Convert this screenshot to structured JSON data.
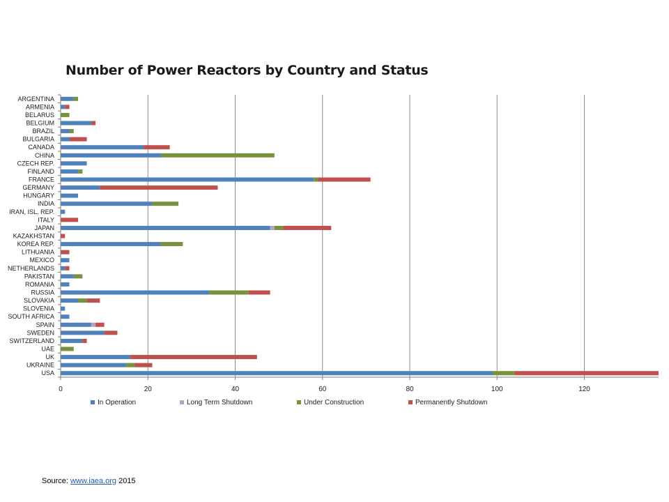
{
  "chart_data": {
    "type": "bar",
    "orientation": "horizontal",
    "stacked": true,
    "title": "Number of Power Reactors by Country and Status",
    "xlabel": "",
    "ylabel": "",
    "xlim": [
      0,
      137
    ],
    "xticks": [
      0,
      20,
      40,
      60,
      80,
      100,
      120
    ],
    "grid": true,
    "legend_position": "bottom",
    "categories": [
      "ARGENTINA",
      "ARMENIA",
      "BELARUS",
      "BELGIUM",
      "BRAZIL",
      "BULGARIA",
      "CANADA",
      "CHINA",
      "CZECH REP.",
      "FINLAND",
      "FRANCE",
      "GERMANY",
      "HUNGARY",
      "INDIA",
      "IRAN, ISL. REP.",
      "ITALY",
      "JAPAN",
      "KAZAKHSTAN",
      "KOREA REP.",
      "LITHUANIA",
      "MEXICO",
      "NETHERLANDS",
      "PAKISTAN",
      "ROMANIA",
      "RUSSIA",
      "SLOVAKIA",
      "SLOVENIA",
      "SOUTH AFRICA",
      "SPAIN",
      "SWEDEN",
      "SWITZERLAND",
      "UAE",
      "UK",
      "UKRAINE",
      "USA"
    ],
    "series": [
      {
        "name": "In Operation",
        "color": "#4f81bd",
        "values": [
          3,
          1,
          0,
          7,
          2,
          2,
          19,
          23,
          6,
          4,
          58,
          9,
          4,
          21,
          1,
          0,
          48,
          0,
          23,
          0,
          2,
          1,
          3,
          2,
          34,
          4,
          1,
          2,
          7,
          10,
          5,
          0,
          16,
          15,
          99
        ]
      },
      {
        "name": "Long Term Shutdown",
        "color": "#b3a2c7",
        "values": [
          0,
          0,
          0,
          0,
          0,
          0,
          0,
          0,
          0,
          0,
          0,
          0,
          0,
          0,
          0,
          0,
          1,
          0,
          0,
          0,
          0,
          0,
          0,
          0,
          0,
          0,
          0,
          0,
          1,
          0,
          0,
          0,
          0,
          0,
          0
        ]
      },
      {
        "name": "Under Construction",
        "color": "#77933c",
        "values": [
          1,
          0,
          2,
          0,
          1,
          0,
          0,
          26,
          0,
          1,
          1,
          0,
          0,
          6,
          0,
          0,
          2,
          0,
          5,
          0,
          0,
          0,
          2,
          0,
          9,
          2,
          0,
          0,
          0,
          0,
          0,
          3,
          0,
          2,
          5
        ]
      },
      {
        "name": "Permanently Shutdown",
        "color": "#c0504d",
        "values": [
          0,
          1,
          0,
          1,
          0,
          4,
          6,
          0,
          0,
          0,
          12,
          27,
          0,
          0,
          0,
          4,
          11,
          1,
          0,
          2,
          0,
          1,
          0,
          0,
          5,
          3,
          0,
          0,
          2,
          3,
          1,
          0,
          29,
          4,
          33
        ]
      }
    ]
  },
  "footer": {
    "source_prefix": "Source: ",
    "source_link": "www.iaea.org",
    "source_suffix": " 2015"
  },
  "colors": {
    "gridline": "#8c8c8c",
    "axis": "#7f7f7f"
  }
}
